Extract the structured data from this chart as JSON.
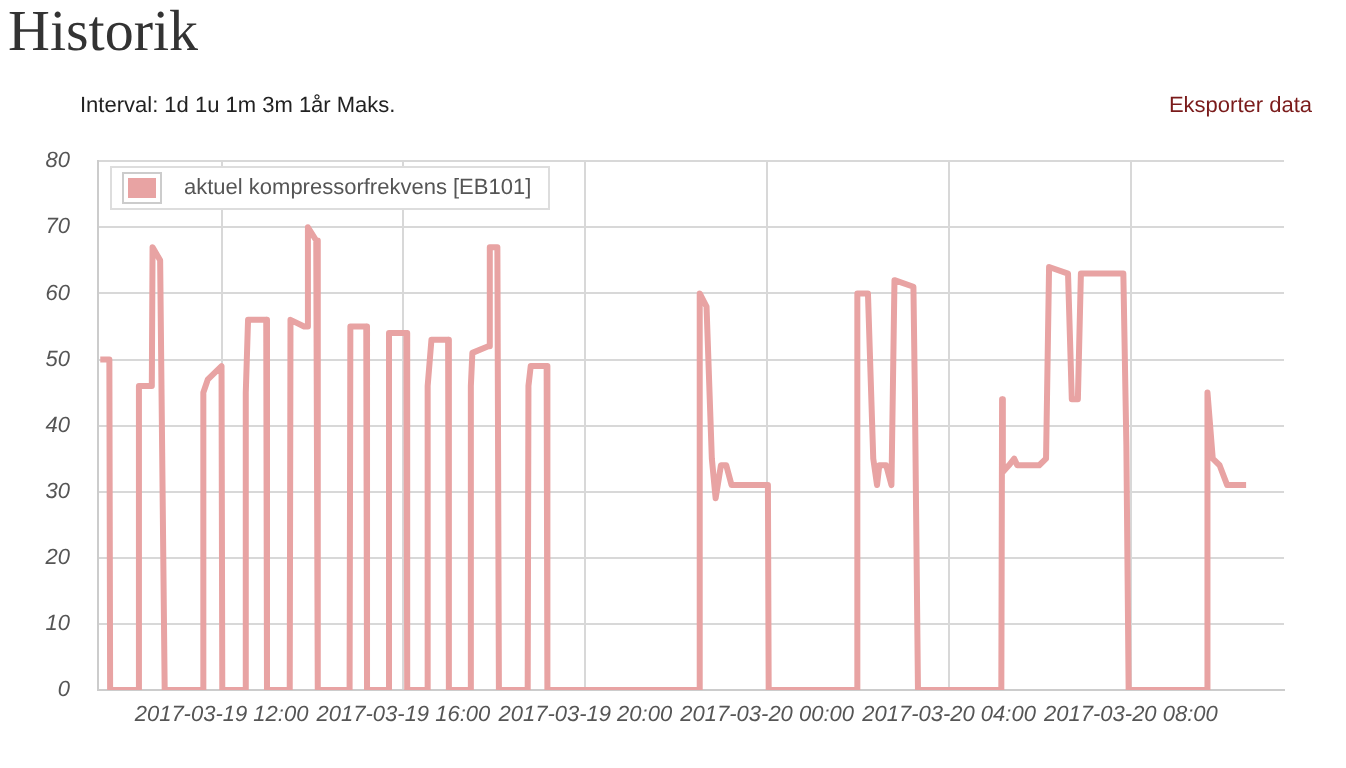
{
  "chart_data": {
    "type": "line",
    "title": "Historik",
    "annotations": [
      "Interval: 1d 1u 1m 3m 1år Maks.",
      "Eksporter data"
    ],
    "x": [
      "2017-03-19T09:20",
      "2017-03-19T09:32",
      "2017-03-19T09:33",
      "2017-03-19T10:10",
      "2017-03-19T10:11",
      "2017-03-19T10:28",
      "2017-03-19T10:29",
      "2017-03-19T10:39",
      "2017-03-19T10:45",
      "2017-03-19T11:35",
      "2017-03-19T11:36",
      "2017-03-19T11:42",
      "2017-03-19T12:00",
      "2017-03-19T12:01",
      "2017-03-19T12:31",
      "2017-03-19T12:32",
      "2017-03-19T12:35",
      "2017-03-19T12:59",
      "2017-03-19T13:00",
      "2017-03-19T13:30",
      "2017-03-19T13:31",
      "2017-03-19T13:49",
      "2017-03-19T13:53",
      "2017-03-19T13:54",
      "2017-03-19T14:05",
      "2017-03-19T14:07",
      "2017-03-19T14:49",
      "2017-03-19T14:50",
      "2017-03-19T15:11",
      "2017-03-19T15:12",
      "2017-03-19T15:40",
      "2017-03-19T15:41",
      "2017-03-19T16:04",
      "2017-03-19T16:05",
      "2017-03-19T16:31",
      "2017-03-19T16:32",
      "2017-03-19T16:37",
      "2017-03-19T16:59",
      "2017-03-19T17:00",
      "2017-03-19T17:28",
      "2017-03-19T17:29",
      "2017-03-19T17:31",
      "2017-03-19T17:52",
      "2017-03-19T17:54",
      "2017-03-19T18:04",
      "2017-03-19T18:06",
      "2017-03-19T18:44",
      "2017-03-19T18:45",
      "2017-03-19T18:48",
      "2017-03-19T19:09",
      "2017-03-19T19:10",
      "2017-03-19T22:30",
      "2017-03-19T22:31",
      "2017-03-19T22:40",
      "2017-03-19T22:47",
      "2017-03-19T22:52",
      "2017-03-19T22:59",
      "2017-03-19T23:06",
      "2017-03-19T23:13",
      "2017-03-20T00:01",
      "2017-03-20T00:02",
      "2017-03-20T01:58",
      "2017-03-20T01:59",
      "2017-03-20T02:13",
      "2017-03-20T02:20",
      "2017-03-20T02:25",
      "2017-03-20T02:28",
      "2017-03-20T02:37",
      "2017-03-20T02:44",
      "2017-03-20T02:48",
      "2017-03-20T03:13",
      "2017-03-20T03:15",
      "2017-03-20T03:19",
      "2017-03-20T05:09",
      "2017-03-20T05:10",
      "2017-03-20T05:11",
      "2017-03-20T05:19",
      "2017-03-20T05:26",
      "2017-03-20T05:30",
      "2017-03-20T05:59",
      "2017-03-20T06:08",
      "2017-03-20T06:12",
      "2017-03-20T06:37",
      "2017-03-20T06:42",
      "2017-03-20T06:50",
      "2017-03-20T06:54",
      "2017-03-20T07:50",
      "2017-03-20T07:54",
      "2017-03-20T07:57",
      "2017-03-20T09:40",
      "2017-03-20T09:41",
      "2017-03-20T09:48",
      "2017-03-20T09:57",
      "2017-03-20T10:07",
      "2017-03-20T10:32"
    ],
    "series": [
      {
        "name": "aktuel kompressorfrekvens [EB101]",
        "color": "#e8a3a3",
        "values": [
          50,
          50,
          0,
          0,
          46,
          46,
          67,
          65,
          0,
          0,
          45,
          47,
          49,
          0,
          0,
          45,
          56,
          56,
          0,
          0,
          56,
          55,
          55,
          70,
          68,
          0,
          0,
          55,
          55,
          0,
          0,
          54,
          54,
          0,
          0,
          46,
          53,
          53,
          0,
          0,
          46,
          51,
          52,
          67,
          67,
          0,
          0,
          46,
          49,
          49,
          0,
          0,
          60,
          58,
          35,
          29,
          34,
          34,
          31,
          31,
          0,
          0,
          60,
          60,
          35,
          31,
          34,
          34,
          31,
          62,
          61,
          44,
          0,
          0,
          44,
          33,
          34,
          35,
          34,
          34,
          35,
          64,
          63,
          44,
          44,
          63,
          63,
          37,
          0,
          0,
          45,
          35,
          34,
          31,
          31
        ]
      }
    ],
    "xlim": [
      "2017-03-19T09:17",
      "2017-03-20T11:22"
    ],
    "xticks": [
      {
        "value": "2017-03-19T12:00",
        "label": "2017-03-19 12:00"
      },
      {
        "value": "2017-03-19T16:00",
        "label": "2017-03-19 16:00"
      },
      {
        "value": "2017-03-19T20:00",
        "label": "2017-03-19 20:00"
      },
      {
        "value": "2017-03-20T00:00",
        "label": "2017-03-20 00:00"
      },
      {
        "value": "2017-03-20T04:00",
        "label": "2017-03-20 04:00"
      },
      {
        "value": "2017-03-20T08:00",
        "label": "2017-03-20 08:00"
      }
    ],
    "ylim": [
      0,
      80
    ],
    "yticks": [
      0,
      10,
      20,
      30,
      40,
      50,
      60,
      70,
      80
    ],
    "grid": true,
    "legend": "top left",
    "marker": "none",
    "line_style": "solid"
  }
}
